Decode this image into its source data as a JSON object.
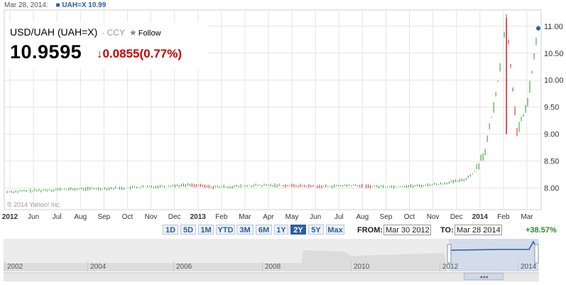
{
  "header": {
    "date": "Mar 28, 2014:",
    "legend_dot": "■",
    "legend_label": "UAH=X 10.99"
  },
  "quote": {
    "title": "USD/UAH (UAH=X)",
    "type": "- CCY",
    "star": "★",
    "follow": "Follow",
    "price": "10.9595",
    "change_arrow": "↓",
    "change": "0.0855(0.77%)"
  },
  "watermark": "© 2014 Yahoo! Inc.",
  "range_buttons": [
    "1D",
    "5D",
    "1M",
    "YTD",
    "3M",
    "6M",
    "1Y",
    "2Y",
    "5Y",
    "Max"
  ],
  "active_range": "2Y",
  "controls": {
    "from_label": "FROM:",
    "from_value": "Mar 30 2012",
    "to_label": "TO:",
    "to_value": "Mar 28 2014",
    "pct_change": "+38.57%"
  },
  "navigator": {
    "years": [
      "2002",
      "2004",
      "2006",
      "2008",
      "2010",
      "2012",
      "2014"
    ],
    "scroll_glyph": "◂◂◂"
  },
  "colors": {
    "up": "#2a9a2a",
    "down": "#d21f1f",
    "grid": "#e4e4e4",
    "accent": "#2b5ea3"
  },
  "chart_data": {
    "type": "line",
    "series_name": "UAH=X",
    "x_tick_labels": [
      "2012",
      "Jun",
      "Jul",
      "Aug",
      "Sep",
      "Oct",
      "Nov",
      "Dec",
      "2013",
      "Feb",
      "Mar",
      "Apr",
      "May",
      "Jun",
      "Jul",
      "Aug",
      "Sep",
      "Oct",
      "Nov",
      "Dec",
      "2014",
      "Feb",
      "Mar"
    ],
    "y_ticks": [
      8.0,
      8.5,
      9.0,
      9.5,
      10.0,
      10.5,
      11.0
    ],
    "y_tick_labels": [
      "8.00",
      "8.50",
      "9.00",
      "9.50",
      "10.00",
      "10.50",
      "11.00"
    ],
    "ylim": [
      7.6,
      11.3
    ],
    "x_dates": [
      "2012-04",
      "2012-05",
      "2012-06",
      "2012-07",
      "2012-08",
      "2012-09",
      "2012-10",
      "2012-11",
      "2012-12",
      "2013-01",
      "2013-02",
      "2013-03",
      "2013-04",
      "2013-05",
      "2013-06",
      "2013-07",
      "2013-08",
      "2013-09",
      "2013-10",
      "2013-11",
      "2013-12",
      "2014-01",
      "2014-02",
      "2014-02b",
      "2014-02c",
      "2014-03",
      "2014-03b",
      "2014-03c"
    ],
    "values": [
      7.93,
      7.95,
      7.97,
      7.98,
      7.99,
      8.0,
      8.02,
      8.04,
      8.06,
      8.02,
      8.03,
      8.05,
      8.05,
      8.04,
      8.03,
      8.05,
      8.03,
      8.03,
      8.04,
      8.08,
      8.15,
      8.3,
      8.7,
      9.7,
      11.15,
      9.0,
      9.6,
      10.96
    ]
  }
}
